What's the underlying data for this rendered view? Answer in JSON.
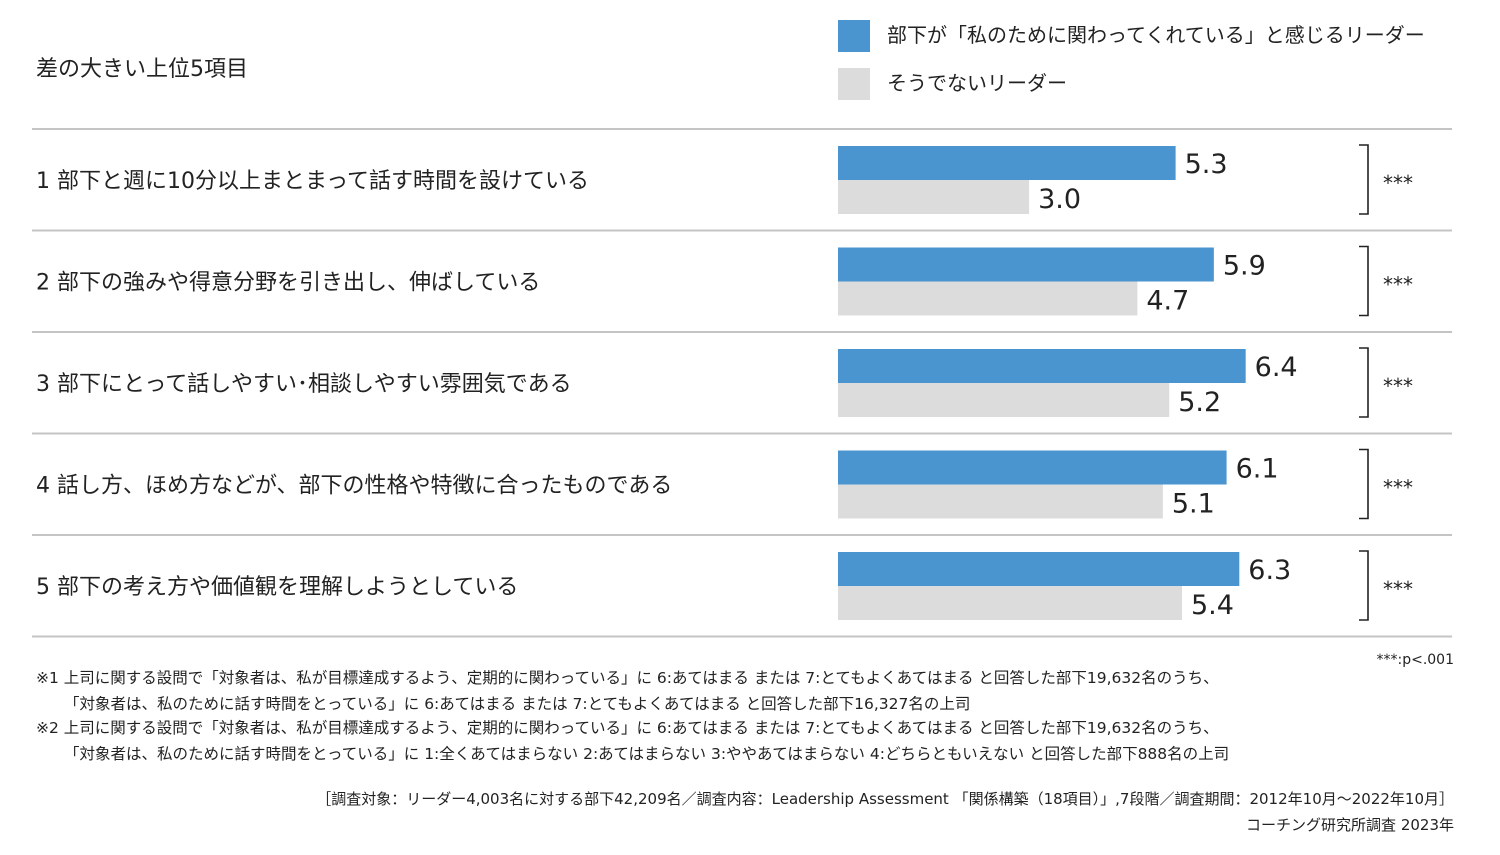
{
  "chart_data": {
    "type": "bar",
    "title": "差の大きい上位5項目",
    "categories": [
      "1 部下と週に10分以上まとまって話す時間を設けている",
      "2 部下の強みや得意分野を引き出し、伸ばしている",
      "3 部下にとって話しやすい･相談しやすい雰囲気である",
      "4 話し方、ほめ方などが、部下の性格や特徴に合ったものである",
      "5 部下の考え方や価値観を理解しようとしている"
    ],
    "series": [
      {
        "name": "部下が「私のために関わってくれている」と感じるリーダー",
        "color": "#4a94d0",
        "values": [
          5.3,
          5.9,
          6.4,
          6.1,
          6.3
        ]
      },
      {
        "name": "そうでないリーダー",
        "color": "#dcdcdc",
        "values": [
          3.0,
          4.7,
          5.2,
          5.1,
          5.4
        ]
      }
    ],
    "value_labels": [
      [
        "5.3",
        "5.9",
        "6.4",
        "6.1",
        "6.3"
      ],
      [
        "3.0",
        "4.7",
        "5.2",
        "5.1",
        "5.4"
      ]
    ],
    "significance": [
      "***",
      "***",
      "***",
      "***",
      "***"
    ],
    "significance_note": "***:p<.001",
    "xlim": [
      0,
      9
    ],
    "orientation": "horizontal",
    "legend_position": "top-right",
    "grid": false
  },
  "notes": {
    "line1": "※1 上司に関する設問で「対象者は、私が目標達成するよう、定期的に関わっている」に 6:あてはまる または 7:とてもよくあてはまる と回答した部下19,632名のうち、",
    "line2": "「対象者は、私のために話す時間をとっている」に 6:あてはまる または 7:とてもよくあてはまる と回答した部下16,327名の上司",
    "line3": "※2 上司に関する設問で「対象者は、私が目標達成するよう、定期的に関わっている」に 6:あてはまる または 7:とてもよくあてはまる と回答した部下19,632名のうち、",
    "line4": "「対象者は、私のために話す時間をとっている」に 1:全くあてはまらない 2:あてはまらない 3:ややあてはまらない 4:どちらともいえない と回答した部下888名の上司",
    "survey": "［調査対象：リーダー4,003名に対する部下42,209名／調査内容：Leadership Assessment 「関係構築（18項目）」,7段階／調査期間：2012年10月～2022年10月］",
    "source": "コーチング研究所調査 2023年"
  }
}
